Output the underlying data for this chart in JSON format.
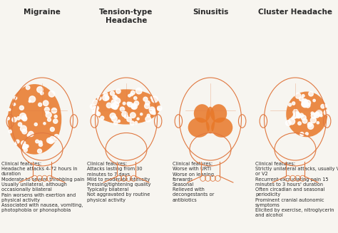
{
  "bg_color": "#f7f5f0",
  "head_outline_color": "#e07840",
  "pain_color": "#e87828",
  "text_color": "#2a2a2a",
  "titles": [
    "Migraine",
    "Tension-type\nHeadache",
    "Sinusitis",
    "Cluster Headache"
  ],
  "title_fontsize": 7.5,
  "clinical_fontsize": 4.8,
  "clinical_texts": [
    "Clinical features:\nHeadache attacks 4-72 hours in\nduration\nModerate to severe throbbing pain\nUsually unilateral, although\noccasionally bilateral\nPain worsens with exertion and\nphysical activity\nAssociated with nausea, vomiting,\nphotophobia or phonophobia",
    "Clinical features:\nAttacks lasting from 30\nminutes to 7 days\nMild to moderate intensity\nPressing/tightening quality\nTypically bilateral\nNot aggravated by routine\nphysical activity",
    "Clinical features:\nWorse with URTI\nWorse on leaning\nforwards\nSeasonal\nRelieved with\ndecongestants or\nantibiotics",
    "Clinical features:\nStrictly unilateral attacks, usually V1\nor V2\nRecurrent excruciating pain 15\nminutes to 3 hours' duration\nOften circadian and seasonal\nperiodicity\nProminent cranial autonomic\nsymptoms\nElicited by exercise, nitroglycerin\nand alcohol"
  ],
  "ncols": 4
}
